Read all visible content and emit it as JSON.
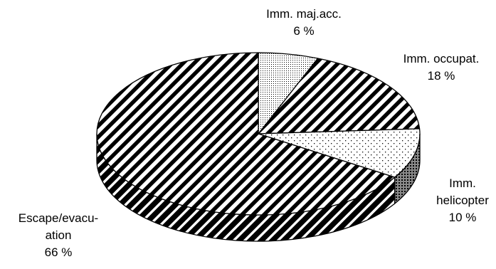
{
  "chart_data": {
    "type": "pie",
    "style": "3d",
    "slices": [
      {
        "label_lines": [
          "Imm. maj.acc."
        ],
        "value": 6,
        "value_label": "6 %",
        "pattern": "dots-fine"
      },
      {
        "label_lines": [
          "Imm. occupat."
        ],
        "value": 18,
        "value_label": "18 %",
        "pattern": "diagonal-stripes"
      },
      {
        "label_lines": [
          "Imm.",
          "helicopter"
        ],
        "value": 10,
        "value_label": "10 %",
        "pattern": "dots-sparse"
      },
      {
        "label_lines": [
          "Escape/evacu-",
          "ation"
        ],
        "value": 66,
        "value_label": "66 %",
        "pattern": "diagonal-stripes"
      }
    ],
    "colors": {
      "ink": "#000000",
      "background": "#ffffff"
    }
  }
}
